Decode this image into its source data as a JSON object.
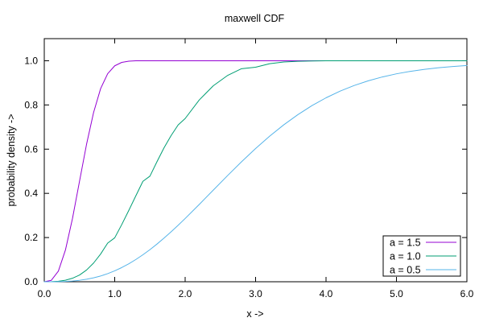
{
  "chart_data": {
    "type": "line",
    "title": "maxwell CDF",
    "xlabel": "x ->",
    "ylabel": "probability density ->",
    "xlim": [
      0.0,
      6.0
    ],
    "ylim": [
      0.0,
      1.1
    ],
    "xticks": [
      "0.0",
      "1.0",
      "2.0",
      "3.0",
      "4.0",
      "5.0",
      "6.0"
    ],
    "yticks": [
      "0.0",
      "0.2",
      "0.4",
      "0.6",
      "0.8",
      "1.0"
    ],
    "grid": false,
    "legend_position": "bottom-right",
    "x": [
      0.0,
      0.1,
      0.2,
      0.3,
      0.4,
      0.5,
      0.6,
      0.7,
      0.8,
      0.9,
      1.0,
      1.1,
      1.2,
      1.3,
      1.4,
      1.5,
      1.6,
      1.7,
      1.8,
      1.9,
      2.0,
      2.2,
      2.4,
      2.6,
      2.8,
      3.0,
      3.2,
      3.4,
      3.6,
      3.8,
      4.0,
      4.2,
      4.4,
      4.6,
      4.8,
      5.0,
      5.2,
      5.4,
      5.6,
      5.8,
      6.0
    ],
    "series": [
      {
        "name": "a = 1.5",
        "color": "#9400d3",
        "values": [
          0.0,
          0.0065,
          0.048,
          0.1431,
          0.2854,
          0.4541,
          0.6218,
          0.7659,
          0.874,
          0.9414,
          0.9771,
          0.9925,
          0.998,
          0.9996,
          0.9999,
          1.0,
          1.0,
          1.0,
          1.0,
          1.0,
          1.0,
          1.0,
          1.0,
          1.0,
          1.0,
          1.0,
          1.0,
          1.0,
          1.0,
          1.0,
          1.0,
          1.0,
          1.0,
          1.0,
          1.0,
          1.0,
          1.0,
          1.0,
          1.0,
          1.0,
          1.0
        ]
      },
      {
        "name": "a = 1.0",
        "color": "#009e73",
        "values": [
          0.0,
          0.0003,
          0.0021,
          0.0069,
          0.0158,
          0.0302,
          0.053,
          0.0847,
          0.1254,
          0.1749,
          0.1987,
          0.2588,
          0.3229,
          0.3887,
          0.4545,
          0.4778,
          0.5431,
          0.606,
          0.6611,
          0.7093,
          0.7385,
          0.8224,
          0.887,
          0.933,
          0.964,
          0.9707,
          0.9865,
          0.9942,
          0.9977,
          0.9991,
          0.9996,
          0.9999,
          1.0,
          1.0,
          1.0,
          1.0,
          1.0,
          1.0,
          1.0,
          1.0,
          1.0
        ]
      },
      {
        "name": "a = 0.5",
        "color": "#56b4e9",
        "values": [
          0.0,
          0.0001,
          0.0004,
          0.0014,
          0.0034,
          0.0066,
          0.0113,
          0.0177,
          0.0261,
          0.0366,
          0.0493,
          0.0642,
          0.0813,
          0.1006,
          0.122,
          0.1453,
          0.1705,
          0.1974,
          0.2258,
          0.2554,
          0.2861,
          0.3498,
          0.4148,
          0.4797,
          0.5427,
          0.6027,
          0.6587,
          0.71,
          0.7561,
          0.7969,
          0.8323,
          0.8626,
          0.8881,
          0.9093,
          0.9267,
          0.9409,
          0.9522,
          0.9612,
          0.9684,
          0.9739,
          0.9783
        ]
      }
    ]
  }
}
